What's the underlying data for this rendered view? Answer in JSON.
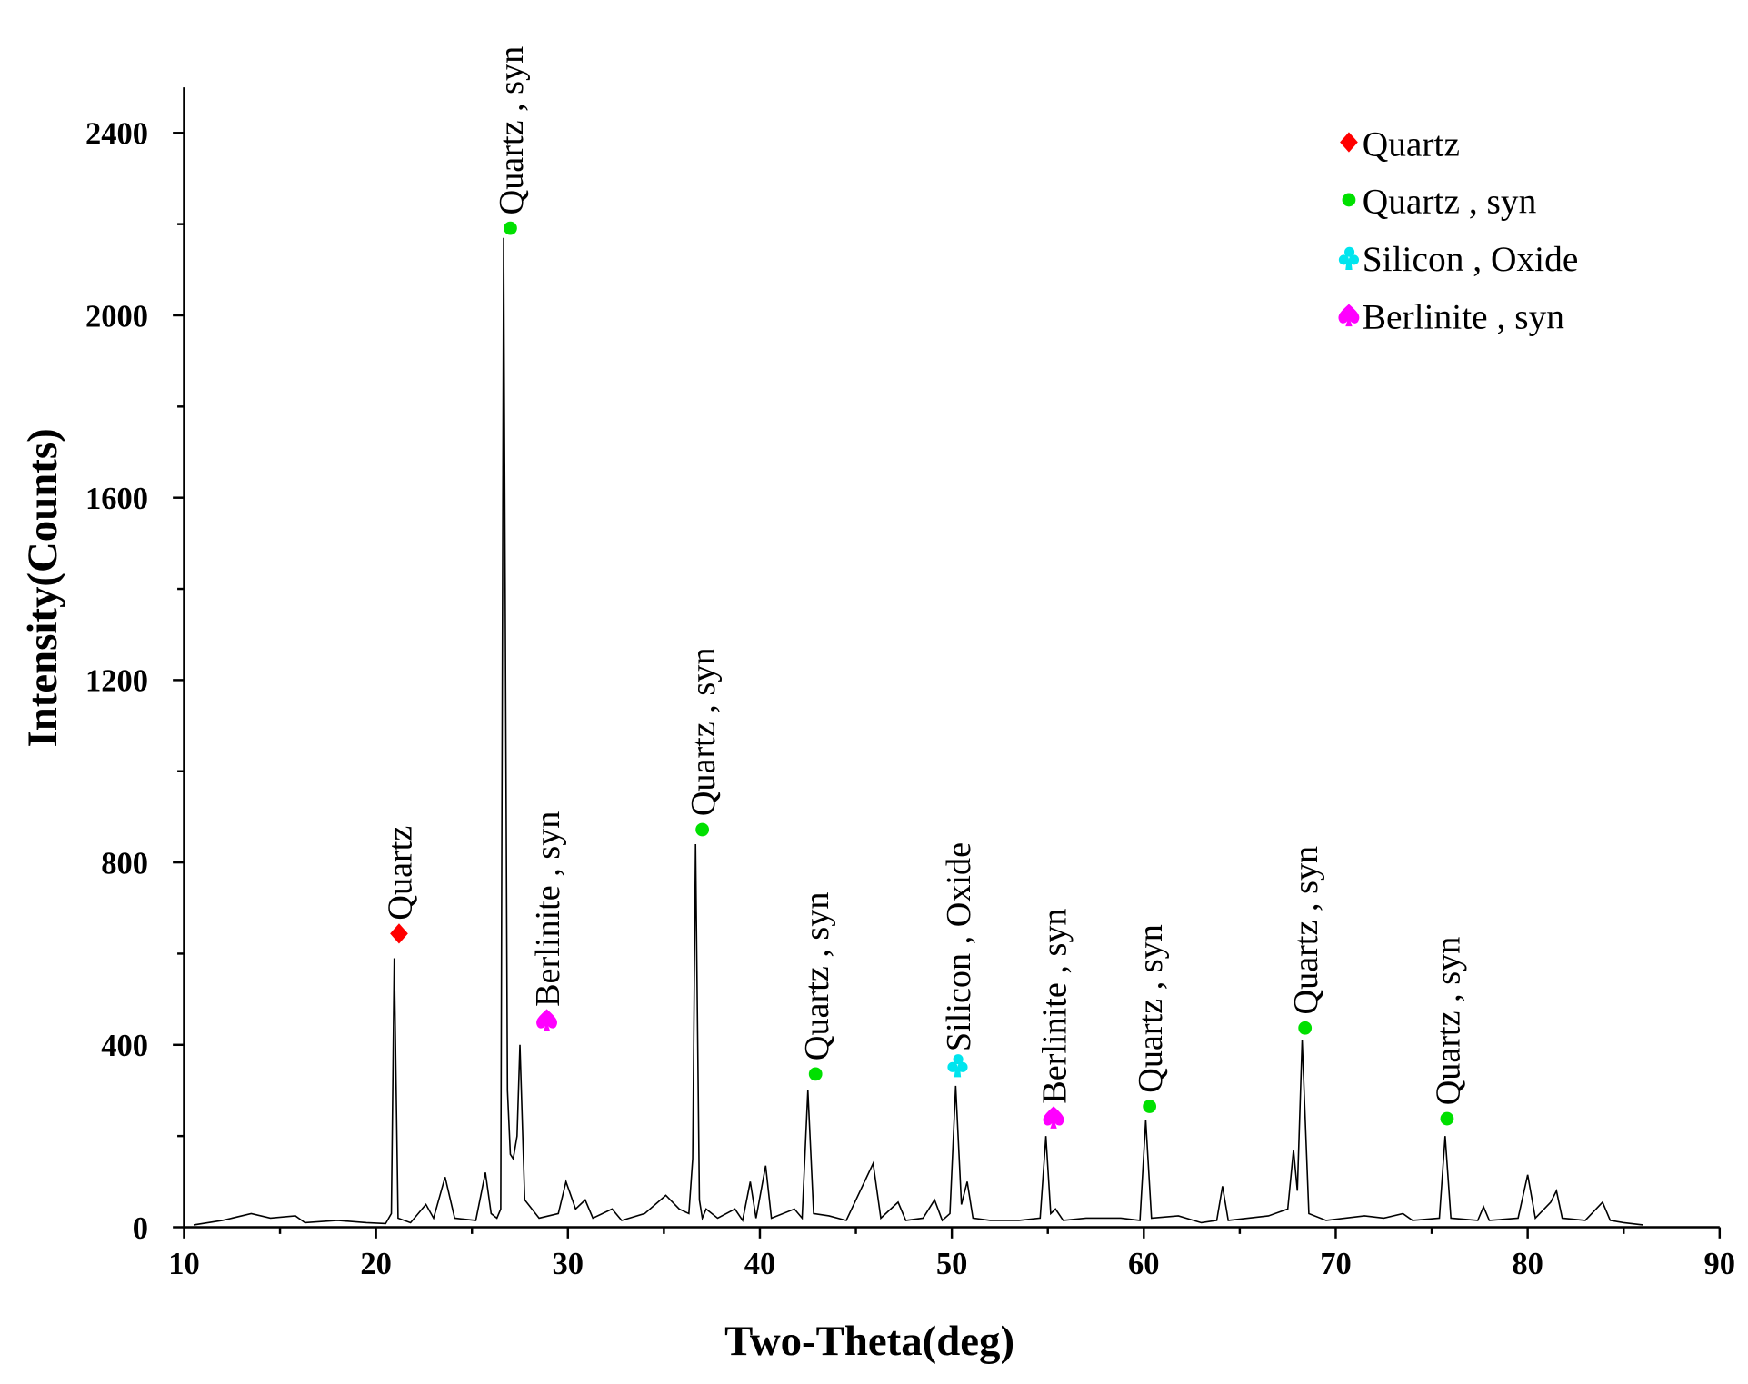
{
  "chart_data": {
    "type": "line",
    "xlabel": "Two-Theta(deg)",
    "ylabel": "Intensity(Counts)",
    "xlim": [
      10,
      90
    ],
    "xticks": [
      10,
      20,
      30,
      40,
      50,
      60,
      70,
      80,
      90
    ],
    "xminorticks": [
      15,
      25,
      35,
      45,
      55,
      65,
      75,
      85
    ],
    "ylim": [
      0,
      2500
    ],
    "yticks": [
      0,
      400,
      800,
      1200,
      1600,
      2000,
      2400
    ],
    "yminorticks": [
      200,
      600,
      1000,
      1400,
      1800,
      2200
    ],
    "color": "#000000",
    "x": [
      10.5,
      12,
      13.5,
      14.5,
      15.8,
      16.3,
      18,
      19.5,
      20.5,
      20.8,
      20.95,
      21.15,
      21.8,
      22.6,
      23,
      23.6,
      24.1,
      25.2,
      25.7,
      26,
      26.3,
      26.5,
      26.65,
      26.85,
      27.0,
      27.15,
      27.35,
      27.5,
      27.75,
      28.5,
      29.5,
      29.9,
      30.4,
      30.9,
      31.3,
      32.3,
      32.8,
      34,
      35.1,
      35.8,
      36.3,
      36.5,
      36.65,
      36.85,
      37.0,
      37.2,
      37.8,
      38.7,
      39.1,
      39.5,
      39.8,
      40.3,
      40.6,
      41.8,
      42.2,
      42.5,
      42.8,
      43.6,
      44.5,
      45.9,
      46.3,
      47.2,
      47.6,
      48.5,
      49.1,
      49.5,
      49.9,
      50.2,
      50.5,
      50.8,
      51.1,
      52,
      53.5,
      54.6,
      54.9,
      55.15,
      55.4,
      55.8,
      57,
      58.8,
      59.8,
      60.1,
      60.4,
      61.8,
      63,
      63.8,
      64.1,
      64.4,
      66.5,
      67.5,
      67.8,
      68.0,
      68.25,
      68.6,
      69.5,
      71.5,
      72.5,
      73.5,
      74,
      75.4,
      75.7,
      76,
      77.4,
      77.7,
      78,
      79.5,
      80,
      80.4,
      81.2,
      81.5,
      81.8,
      83,
      83.9,
      84.3,
      85,
      86
    ],
    "y": [
      5,
      15,
      30,
      20,
      25,
      10,
      15,
      10,
      8,
      30,
      590,
      20,
      10,
      50,
      20,
      110,
      20,
      15,
      120,
      30,
      20,
      40,
      2170,
      300,
      160,
      150,
      200,
      400,
      60,
      20,
      30,
      100,
      40,
      60,
      20,
      40,
      15,
      30,
      70,
      40,
      30,
      150,
      840,
      60,
      20,
      40,
      20,
      40,
      15,
      100,
      20,
      135,
      20,
      40,
      20,
      300,
      30,
      25,
      15,
      140,
      20,
      55,
      15,
      20,
      60,
      15,
      30,
      310,
      50,
      100,
      20,
      15,
      15,
      20,
      200,
      30,
      40,
      15,
      20,
      20,
      15,
      235,
      20,
      25,
      10,
      15,
      90,
      15,
      25,
      40,
      170,
      80,
      410,
      30,
      15,
      25,
      20,
      30,
      15,
      20,
      200,
      20,
      15,
      45,
      15,
      20,
      115,
      20,
      55,
      80,
      20,
      15,
      55,
      15,
      10,
      5
    ],
    "annotations": [
      {
        "text": "Quartz",
        "x": 21.2,
        "y": 644,
        "marker": "diamond",
        "color": "#ff0000"
      },
      {
        "text": "Quartz , syn",
        "x": 27.0,
        "y": 2191,
        "marker": "circle",
        "color": "#00e000"
      },
      {
        "text": "Berlinite , syn",
        "x": 28.9,
        "y": 454,
        "marker": "spade",
        "color": "#ff00ff"
      },
      {
        "text": "Quartz , syn",
        "x": 37.0,
        "y": 872,
        "marker": "circle",
        "color": "#00e000"
      },
      {
        "text": "Quartz , syn",
        "x": 42.9,
        "y": 336,
        "marker": "circle",
        "color": "#00e000"
      },
      {
        "text": "Silicon , Oxide",
        "x": 50.3,
        "y": 356,
        "marker": "club",
        "color": "#00e5ee"
      },
      {
        "text": "Berlinite , syn",
        "x": 55.3,
        "y": 241,
        "marker": "spade",
        "color": "#ff00ff"
      },
      {
        "text": "Quartz , syn",
        "x": 60.3,
        "y": 265,
        "marker": "circle",
        "color": "#00e000"
      },
      {
        "text": "Quartz , syn",
        "x": 68.4,
        "y": 437,
        "marker": "circle",
        "color": "#00e000"
      },
      {
        "text": "Quartz , syn",
        "x": 75.8,
        "y": 238,
        "marker": "circle",
        "color": "#00e000"
      }
    ],
    "legend": [
      {
        "name": "Quartz",
        "marker": "diamond",
        "color": "#ff0000"
      },
      {
        "name": "Quartz , syn",
        "marker": "circle",
        "color": "#00e000"
      },
      {
        "name": "Silicon , Oxide",
        "marker": "club",
        "color": "#00e5ee"
      },
      {
        "name": "Berlinite , syn",
        "marker": "spade",
        "color": "#ff00ff"
      }
    ]
  }
}
